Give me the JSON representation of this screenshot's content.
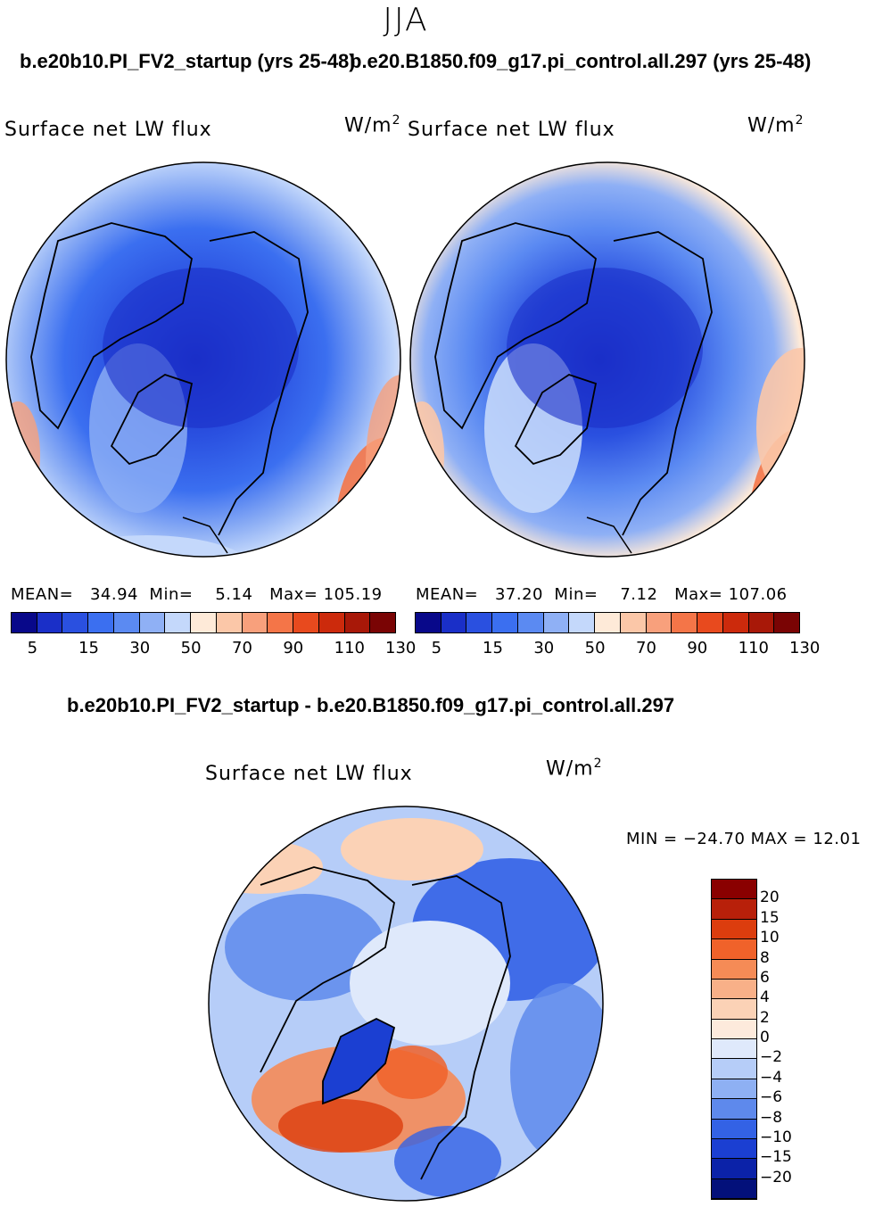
{
  "season": "JJA",
  "top_left": {
    "run_title": "b.e20b10.PI_FV2_startup (yrs 25-48)",
    "plot_label": "Surface net LW flux",
    "units": "W/m",
    "units_exp": "2",
    "stats": {
      "mean_label": "MEAN=",
      "mean": "34.94",
      "min_label": "Min=",
      "min": "5.14",
      "max_label": "Max=",
      "max": "105.19"
    },
    "ticks": [
      "5",
      "15",
      "30",
      "50",
      "70",
      "90",
      "110",
      "130"
    ]
  },
  "top_right": {
    "run_title": "b.e20.B1850.f09_g17.pi_control.all.297 (yrs 25-48)",
    "plot_label": "Surface net LW flux",
    "units": "W/m",
    "units_exp": "2",
    "stats": {
      "mean_label": "MEAN=",
      "mean": "37.20",
      "min_label": "Min=",
      "min": "7.12",
      "max_label": "Max=",
      "max": "107.06"
    },
    "ticks": [
      "5",
      "15",
      "30",
      "50",
      "70",
      "90",
      "110",
      "130"
    ]
  },
  "diff": {
    "title": "b.e20b10.PI_FV2_startup - b.e20.B1850.f09_g17.pi_control.all.297",
    "plot_label": "Surface net LW flux",
    "units": "W/m",
    "units_exp": "2",
    "minmax": "MIN = −24.70 MAX =   12.01",
    "ticks": [
      "20",
      "15",
      "10",
      "8",
      "6",
      "4",
      "2",
      "0",
      "−2",
      "−4",
      "−6",
      "−8",
      "−10",
      "−15",
      "−20"
    ]
  },
  "colors": {
    "abs_scale": [
      "#08088a",
      "#1a2fc8",
      "#2a50e0",
      "#3b6ff0",
      "#5b8af2",
      "#8fb0f5",
      "#c4d8fb",
      "#feead8",
      "#fbc7a8",
      "#f8a07c",
      "#f47548",
      "#e84a1e",
      "#cc2a0c",
      "#a81808",
      "#7a0404"
    ],
    "diff_scale": [
      "#8a0000",
      "#b8200a",
      "#dc3d0e",
      "#f0622a",
      "#f58b56",
      "#f8b088",
      "#fbd2b6",
      "#fdeadc",
      "#dfe9fb",
      "#b6cdf8",
      "#8eb0f3",
      "#5e89ec",
      "#3362e5",
      "#1b3fd2",
      "#0b22a8",
      "#03107a"
    ]
  }
}
